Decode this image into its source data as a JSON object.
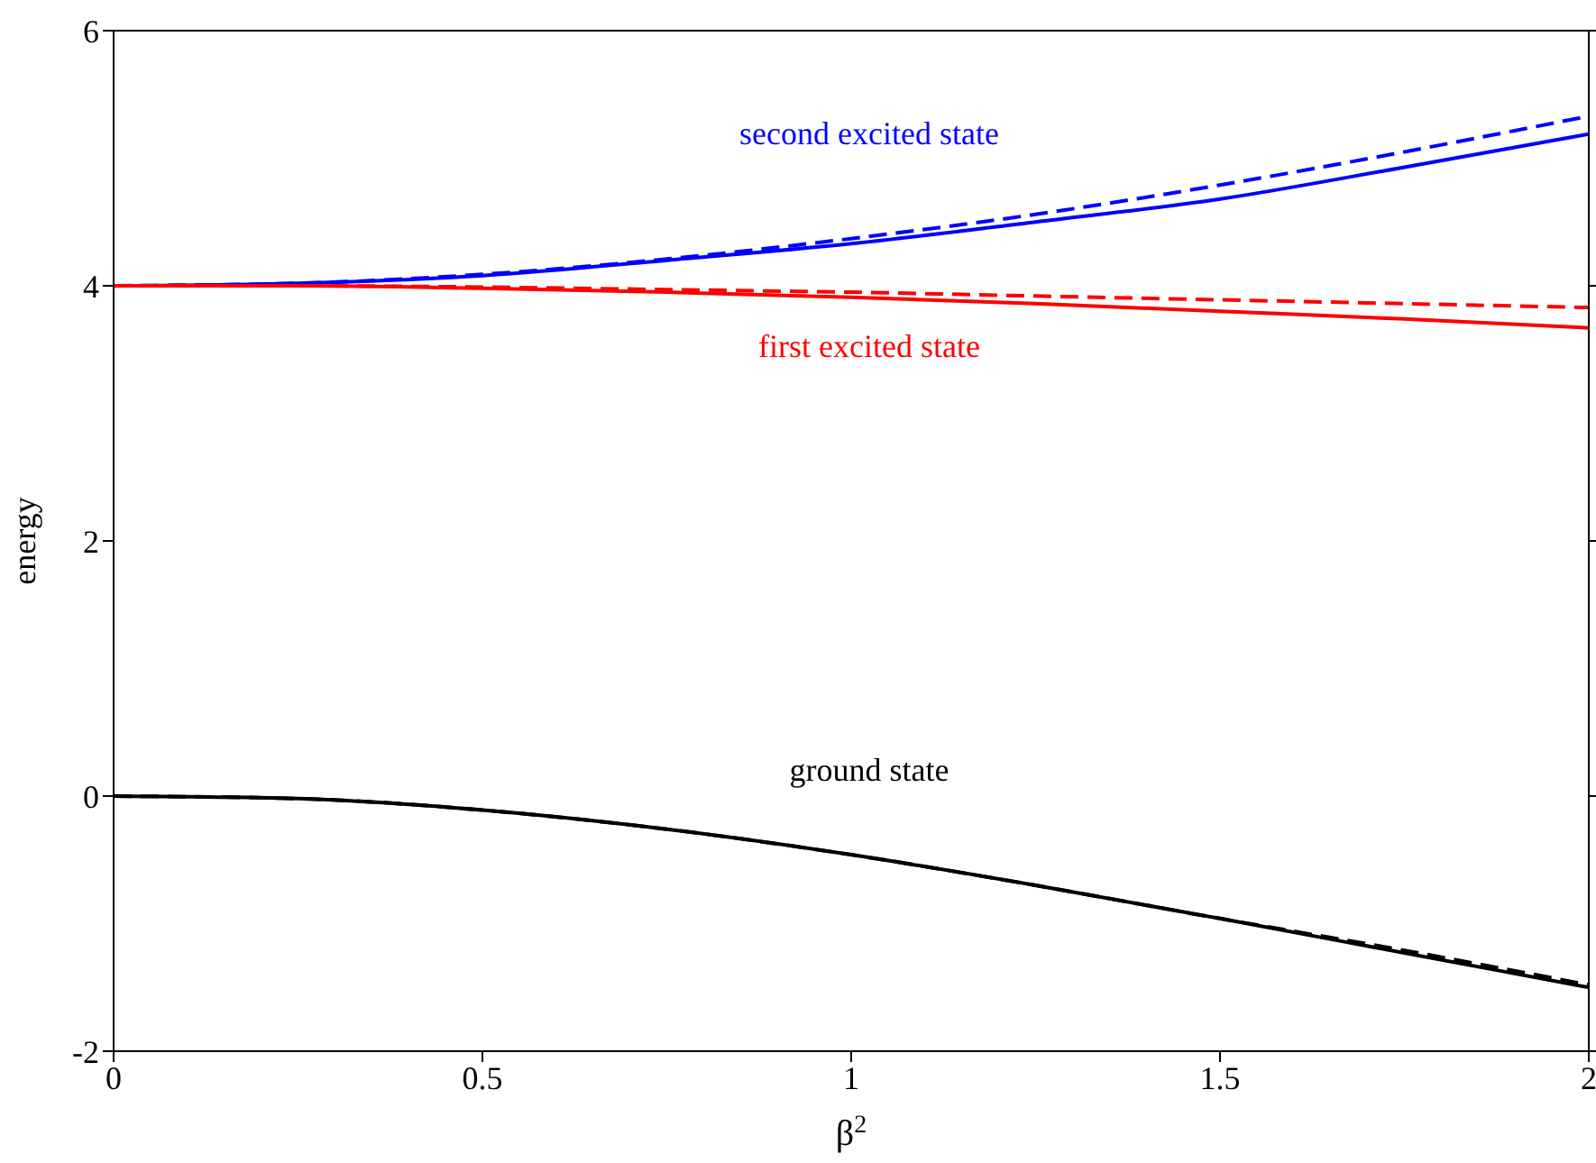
{
  "chart_data": {
    "type": "line",
    "xlabel": "β$^{2}$",
    "ylabel": "energy",
    "x": [
      0,
      0.25,
      0.5,
      0.75,
      1,
      1.25,
      1.5,
      1.75,
      2
    ],
    "series": [
      {
        "name": "second excited state",
        "color": "#0000ff",
        "values": [
          4,
          4.02,
          4.08,
          4.2,
          4.33,
          4.5,
          4.68,
          4.93,
          5.19
        ]
      },
      {
        "color": "#0000ff",
        "line_style": "dashed",
        "values": [
          4,
          4.02,
          4.09,
          4.21,
          4.37,
          4.56,
          4.79,
          5.05,
          5.33
        ]
      },
      {
        "name": "first excited state",
        "color": "#ff0000",
        "values": [
          4,
          4,
          3.98,
          3.95,
          3.91,
          3.86,
          3.8,
          3.74,
          3.67
        ]
      },
      {
        "color": "#ff0000",
        "line_style": "dashed",
        "values": [
          4,
          4,
          3.99,
          3.97,
          3.95,
          3.92,
          3.89,
          3.86,
          3.83
        ]
      },
      {
        "name": "ground state",
        "color": "#000000",
        "values": [
          0,
          -0.02,
          -0.11,
          -0.26,
          -0.46,
          -0.7,
          -0.96,
          -1.23,
          -1.5
        ]
      },
      {
        "color": "#000000",
        "line_style": "dashed",
        "values": [
          0,
          -0.02,
          -0.11,
          -0.26,
          -0.46,
          -0.7,
          -0.96,
          -1.21,
          -1.48
        ]
      }
    ],
    "xlim": [
      0,
      2
    ],
    "xticks": [
      0,
      0.5,
      1,
      1.5,
      2
    ],
    "ylim": [
      -2,
      6
    ],
    "yticks": [
      -2,
      0,
      2,
      4,
      6
    ],
    "marker": "none",
    "line_style": "solid",
    "grid": false,
    "legend": false
  }
}
